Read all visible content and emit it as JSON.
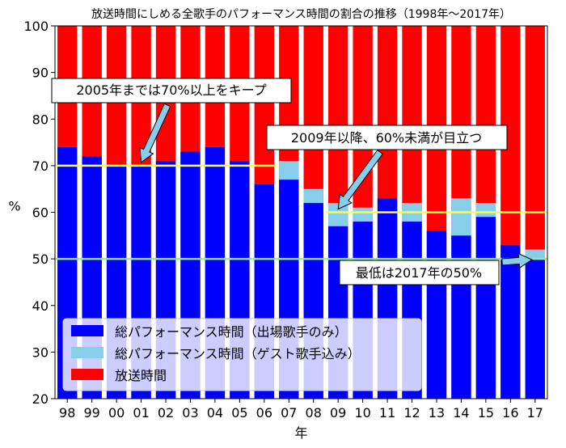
{
  "chart_data": {
    "type": "bar",
    "title": "放送時間にしめる全歌手のパフォーマンス時間の割合の推移（1998年〜2017年）",
    "xlabel": "年",
    "ylabel": "%",
    "ylim": [
      20,
      100
    ],
    "yticks": [
      20,
      30,
      40,
      50,
      60,
      70,
      80,
      90,
      100
    ],
    "categories": [
      "98",
      "99",
      "00",
      "01",
      "02",
      "03",
      "04",
      "05",
      "06",
      "07",
      "08",
      "09",
      "10",
      "11",
      "12",
      "13",
      "14",
      "15",
      "16",
      "17"
    ],
    "series": [
      {
        "name": "総パフォーマンス時間（出場歌手のみ）",
        "color": "#0000ff",
        "values": [
          74,
          72,
          70,
          70,
          71,
          73,
          74,
          71,
          66,
          67,
          62,
          57,
          58,
          63,
          58,
          56,
          55,
          59,
          53,
          50
        ]
      },
      {
        "name": "総パフォーマンス時間（ゲスト歌手込み）",
        "color": "#87ceeb",
        "values": [
          74,
          72,
          70,
          70,
          71,
          73,
          74,
          71,
          66,
          71,
          65,
          62,
          61,
          63,
          62,
          56,
          63,
          62,
          53,
          52
        ]
      },
      {
        "name": "放送時間",
        "color": "#ff0000",
        "values": [
          100,
          100,
          100,
          100,
          100,
          100,
          100,
          100,
          100,
          100,
          100,
          100,
          100,
          100,
          100,
          100,
          100,
          100,
          100,
          100
        ]
      }
    ],
    "reference_lines": [
      {
        "y": 70,
        "from_category": "98",
        "to_category": "06",
        "color": "#ffff33"
      },
      {
        "y": 60,
        "from_category": "09",
        "to_category": "17",
        "color": "#ffff33"
      },
      {
        "y": 50,
        "from_category": "98",
        "to_category": "17",
        "color": "#90ee90"
      }
    ],
    "annotations": [
      {
        "text": "2005年までは70%以上をキープ",
        "points_to": {
          "category": "01",
          "y": 70
        }
      },
      {
        "text": "2009年以降、60%未満が目立つ",
        "points_to": {
          "category": "09",
          "y": 60
        }
      },
      {
        "text": "最低は2017年の50%",
        "points_to": {
          "category": "17",
          "y": 50
        }
      }
    ],
    "legend_position": "lower-left",
    "grid": false
  }
}
